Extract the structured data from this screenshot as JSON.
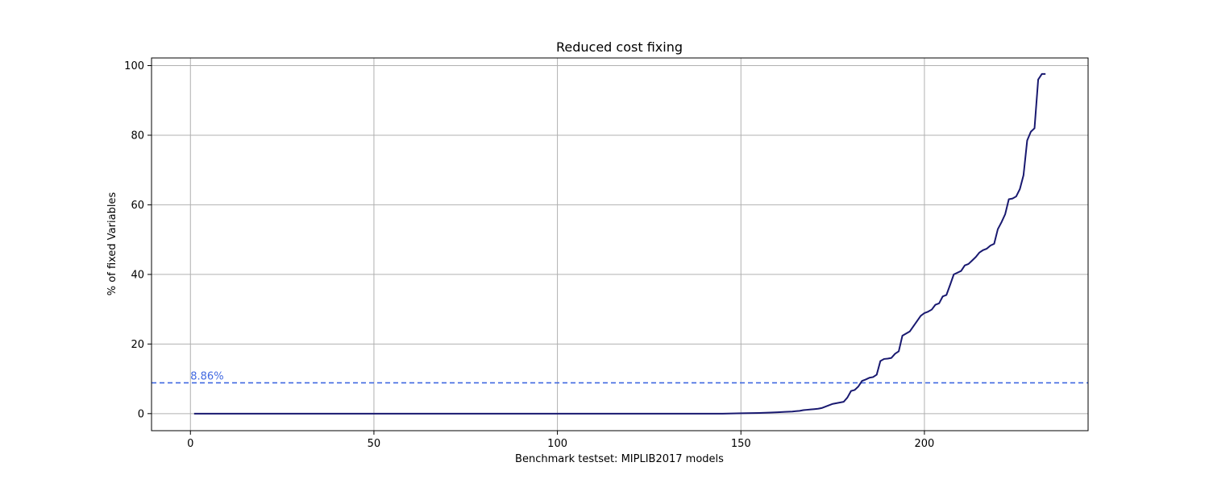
{
  "chart_data": {
    "type": "line",
    "title": "Reduced cost fixing",
    "xlabel": "Benchmark testset: MIPLIB2017 models",
    "ylabel": "% of fixed Variables",
    "xlim": [
      -10.6,
      244.6
    ],
    "ylim": [
      -4.9,
      102.2
    ],
    "xticks": [
      0,
      50,
      100,
      150,
      200
    ],
    "yticks": [
      0,
      20,
      40,
      60,
      80,
      100
    ],
    "grid": true,
    "series_color": "#191970",
    "reference_line": {
      "y": 8.86,
      "label": "8.86%",
      "color": "#4169e1"
    },
    "series": [
      {
        "x": [
          1,
          145,
          150,
          155,
          158,
          160,
          162,
          164,
          165,
          166,
          167,
          168,
          169,
          170,
          171,
          172,
          173,
          174,
          175,
          176,
          177,
          178,
          179,
          180,
          181,
          182,
          183,
          184,
          185,
          186,
          187,
          188,
          189,
          190,
          191,
          192,
          193,
          194,
          195,
          196,
          197,
          198,
          199,
          200,
          201,
          202,
          203,
          204,
          205,
          206,
          207,
          208,
          209,
          210,
          211,
          212,
          213,
          214,
          215,
          216,
          217,
          218,
          219,
          220,
          221,
          222,
          223,
          224,
          225,
          226,
          227,
          228,
          229,
          230,
          231,
          232,
          233
        ],
        "y": [
          0,
          0,
          0.1,
          0.2,
          0.3,
          0.4,
          0.5,
          0.6,
          0.7,
          0.8,
          1.0,
          1.1,
          1.2,
          1.3,
          1.4,
          1.6,
          2.0,
          2.4,
          2.8,
          3.0,
          3.2,
          3.4,
          4.6,
          6.5,
          6.8,
          7.8,
          9.4,
          9.8,
          10.3,
          10.5,
          11.2,
          15.1,
          15.7,
          15.8,
          16.0,
          17.2,
          17.9,
          22.4,
          23.0,
          23.6,
          25.1,
          26.6,
          28.1,
          28.9,
          29.3,
          29.9,
          31.3,
          31.7,
          33.7,
          34.1,
          37.0,
          40.0,
          40.5,
          41.0,
          42.6,
          43.0,
          44.0,
          45.0,
          46.3,
          47.0,
          47.4,
          48.3,
          48.8,
          53.0,
          55.0,
          57.3,
          61.6,
          61.8,
          62.4,
          64.5,
          68.5,
          78.5,
          81.0,
          82.0,
          96.0,
          97.6,
          97.6
        ]
      }
    ]
  }
}
